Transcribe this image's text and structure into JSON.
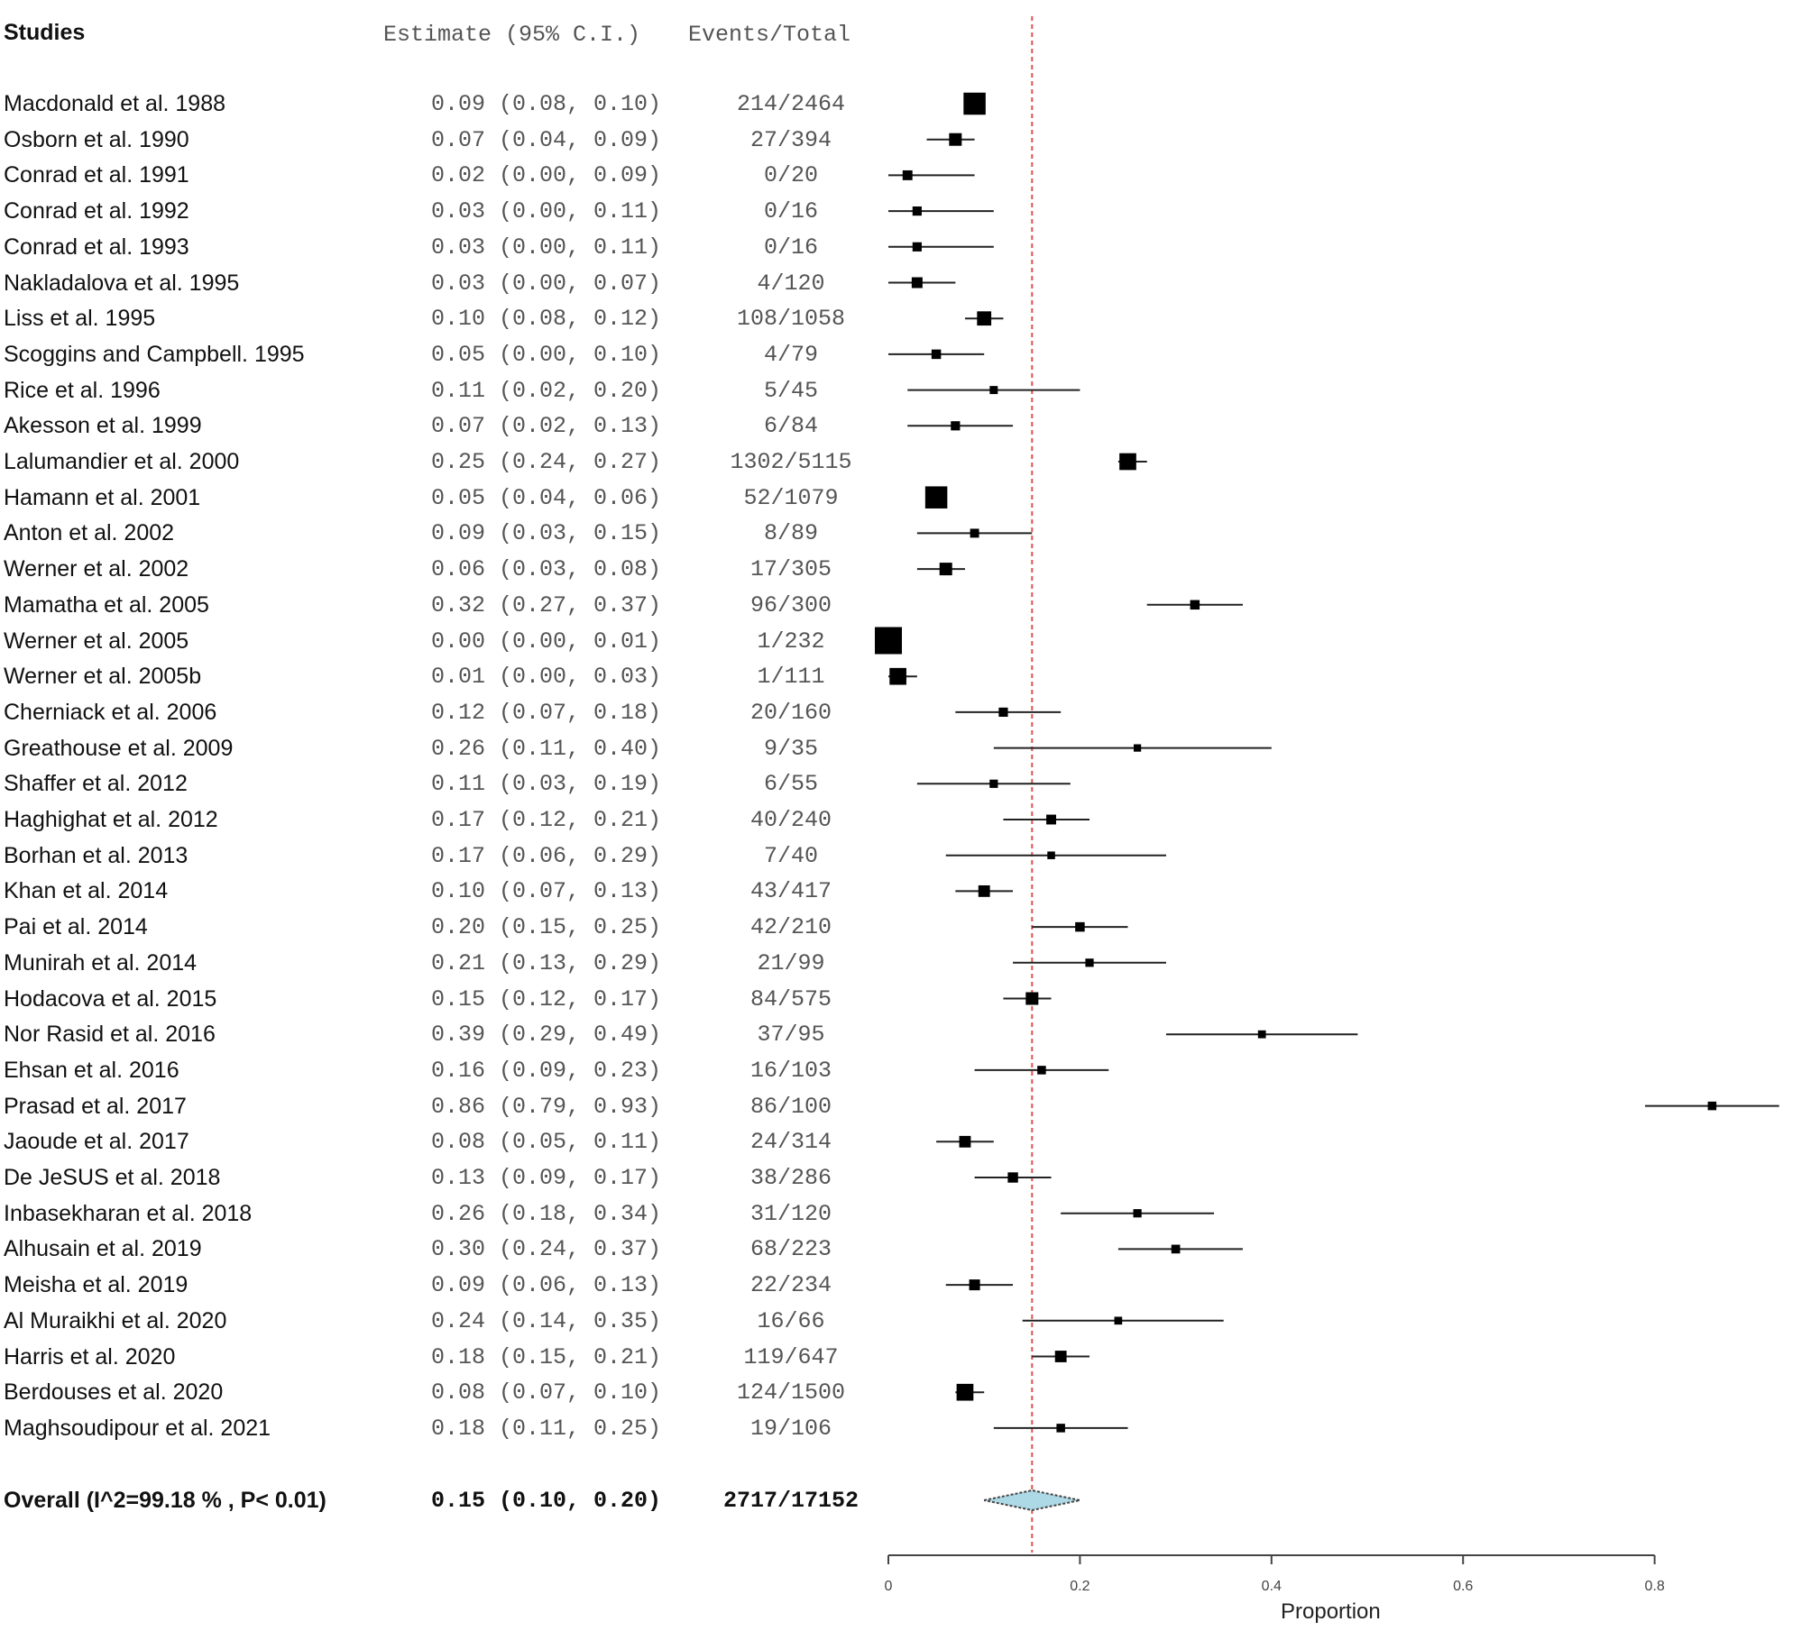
{
  "chart_data": {
    "type": "forest",
    "headers": {
      "studies": "Studies",
      "estimate": "Estimate (95% C.I.)",
      "events": "Events/Total"
    },
    "xlabel": "Proportion",
    "xlim": [
      0,
      0.8
    ],
    "xticks": [
      "0",
      "0.2",
      "0.4",
      "0.6",
      "0.8"
    ],
    "reference_line": 0.15,
    "reference_color": "#e05050",
    "diamond_color": "#add8e6",
    "studies": [
      {
        "name": "Macdonald et al. 1988",
        "est": 0.09,
        "lo": 0.08,
        "hi": 0.1,
        "ci": "0.09 (0.08, 0.10)",
        "events": "214/2464"
      },
      {
        "name": "Osborn et al. 1990",
        "est": 0.07,
        "lo": 0.04,
        "hi": 0.09,
        "ci": "0.07 (0.04, 0.09)",
        "events": "27/394"
      },
      {
        "name": "Conrad et al. 1991",
        "est": 0.02,
        "lo": 0.0,
        "hi": 0.09,
        "ci": "0.02 (0.00, 0.09)",
        "events": "0/20"
      },
      {
        "name": "Conrad et al. 1992",
        "est": 0.03,
        "lo": 0.0,
        "hi": 0.11,
        "ci": "0.03 (0.00, 0.11)",
        "events": "0/16"
      },
      {
        "name": "Conrad et al. 1993",
        "est": 0.03,
        "lo": 0.0,
        "hi": 0.11,
        "ci": "0.03 (0.00, 0.11)",
        "events": "0/16"
      },
      {
        "name": "Nakladalova et al. 1995",
        "est": 0.03,
        "lo": 0.0,
        "hi": 0.07,
        "ci": "0.03 (0.00, 0.07)",
        "events": "4/120"
      },
      {
        "name": "Liss et al. 1995",
        "est": 0.1,
        "lo": 0.08,
        "hi": 0.12,
        "ci": "0.10 (0.08, 0.12)",
        "events": "108/1058"
      },
      {
        "name": "Scoggins and Campbell. 1995",
        "est": 0.05,
        "lo": 0.0,
        "hi": 0.1,
        "ci": "0.05 (0.00, 0.10)",
        "events": "4/79"
      },
      {
        "name": "Rice et al. 1996",
        "est": 0.11,
        "lo": 0.02,
        "hi": 0.2,
        "ci": "0.11 (0.02, 0.20)",
        "events": "5/45"
      },
      {
        "name": "Akesson et al. 1999",
        "est": 0.07,
        "lo": 0.02,
        "hi": 0.13,
        "ci": "0.07 (0.02, 0.13)",
        "events": "6/84"
      },
      {
        "name": "Lalumandier et al. 2000",
        "est": 0.25,
        "lo": 0.24,
        "hi": 0.27,
        "ci": "0.25 (0.24, 0.27)",
        "events": "1302/5115"
      },
      {
        "name": "Hamann et al. 2001",
        "est": 0.05,
        "lo": 0.04,
        "hi": 0.06,
        "ci": "0.05 (0.04, 0.06)",
        "events": "52/1079"
      },
      {
        "name": "Anton et al. 2002",
        "est": 0.09,
        "lo": 0.03,
        "hi": 0.15,
        "ci": "0.09 (0.03, 0.15)",
        "events": "8/89"
      },
      {
        "name": "Werner et al. 2002",
        "est": 0.06,
        "lo": 0.03,
        "hi": 0.08,
        "ci": "0.06 (0.03, 0.08)",
        "events": "17/305"
      },
      {
        "name": "Mamatha et al. 2005",
        "est": 0.32,
        "lo": 0.27,
        "hi": 0.37,
        "ci": "0.32 (0.27, 0.37)",
        "events": "96/300"
      },
      {
        "name": "Werner et al. 2005",
        "est": 0.0,
        "lo": 0.0,
        "hi": 0.01,
        "ci": "0.00 (0.00, 0.01)",
        "events": "1/232"
      },
      {
        "name": "Werner et al. 2005b",
        "est": 0.01,
        "lo": 0.0,
        "hi": 0.03,
        "ci": "0.01 (0.00, 0.03)",
        "events": "1/111"
      },
      {
        "name": "Cherniack et al. 2006",
        "est": 0.12,
        "lo": 0.07,
        "hi": 0.18,
        "ci": "0.12 (0.07, 0.18)",
        "events": "20/160"
      },
      {
        "name": "Greathouse et al. 2009",
        "est": 0.26,
        "lo": 0.11,
        "hi": 0.4,
        "ci": "0.26 (0.11, 0.40)",
        "events": "9/35"
      },
      {
        "name": "Shaffer et al. 2012",
        "est": 0.11,
        "lo": 0.03,
        "hi": 0.19,
        "ci": "0.11 (0.03, 0.19)",
        "events": "6/55"
      },
      {
        "name": "Haghighat et al. 2012",
        "est": 0.17,
        "lo": 0.12,
        "hi": 0.21,
        "ci": "0.17 (0.12, 0.21)",
        "events": "40/240"
      },
      {
        "name": "Borhan et al. 2013",
        "est": 0.17,
        "lo": 0.06,
        "hi": 0.29,
        "ci": "0.17 (0.06, 0.29)",
        "events": "7/40"
      },
      {
        "name": "Khan et al. 2014",
        "est": 0.1,
        "lo": 0.07,
        "hi": 0.13,
        "ci": "0.10 (0.07, 0.13)",
        "events": "43/417"
      },
      {
        "name": "Pai et al. 2014",
        "est": 0.2,
        "lo": 0.15,
        "hi": 0.25,
        "ci": "0.20 (0.15, 0.25)",
        "events": "42/210"
      },
      {
        "name": "Munirah et al. 2014",
        "est": 0.21,
        "lo": 0.13,
        "hi": 0.29,
        "ci": "0.21 (0.13, 0.29)",
        "events": "21/99"
      },
      {
        "name": "Hodacova et al. 2015",
        "est": 0.15,
        "lo": 0.12,
        "hi": 0.17,
        "ci": "0.15 (0.12, 0.17)",
        "events": "84/575"
      },
      {
        "name": "Nor Rasid et al. 2016",
        "est": 0.39,
        "lo": 0.29,
        "hi": 0.49,
        "ci": "0.39 (0.29, 0.49)",
        "events": "37/95"
      },
      {
        "name": "Ehsan et al. 2016",
        "est": 0.16,
        "lo": 0.09,
        "hi": 0.23,
        "ci": "0.16 (0.09, 0.23)",
        "events": "16/103"
      },
      {
        "name": "Prasad et al. 2017",
        "est": 0.86,
        "lo": 0.79,
        "hi": 0.93,
        "ci": "0.86 (0.79, 0.93)",
        "events": "86/100"
      },
      {
        "name": "Jaoude et al. 2017",
        "est": 0.08,
        "lo": 0.05,
        "hi": 0.11,
        "ci": "0.08 (0.05, 0.11)",
        "events": "24/314"
      },
      {
        "name": "De JeSUS et al. 2018",
        "est": 0.13,
        "lo": 0.09,
        "hi": 0.17,
        "ci": "0.13 (0.09, 0.17)",
        "events": "38/286"
      },
      {
        "name": "Inbasekharan et al. 2018",
        "est": 0.26,
        "lo": 0.18,
        "hi": 0.34,
        "ci": "0.26 (0.18, 0.34)",
        "events": "31/120"
      },
      {
        "name": "Alhusain et al. 2019",
        "est": 0.3,
        "lo": 0.24,
        "hi": 0.37,
        "ci": "0.30 (0.24, 0.37)",
        "events": "68/223"
      },
      {
        "name": "Meisha et al. 2019",
        "est": 0.09,
        "lo": 0.06,
        "hi": 0.13,
        "ci": "0.09 (0.06, 0.13)",
        "events": "22/234"
      },
      {
        "name": "Al Muraikhi et al. 2020",
        "est": 0.24,
        "lo": 0.14,
        "hi": 0.35,
        "ci": "0.24 (0.14, 0.35)",
        "events": "16/66"
      },
      {
        "name": "Harris et al. 2020",
        "est": 0.18,
        "lo": 0.15,
        "hi": 0.21,
        "ci": "0.18 (0.15, 0.21)",
        "events": "119/647"
      },
      {
        "name": "Berdouses et al. 2020",
        "est": 0.08,
        "lo": 0.07,
        "hi": 0.1,
        "ci": "0.08 (0.07, 0.10)",
        "events": "124/1500"
      },
      {
        "name": "Maghsoudipour et al. 2021",
        "est": 0.18,
        "lo": 0.11,
        "hi": 0.25,
        "ci": "0.18 (0.11, 0.25)",
        "events": "19/106"
      }
    ],
    "overall": {
      "name": "Overall (I^2=99.18 % , P< 0.01)",
      "est": 0.15,
      "lo": 0.1,
      "hi": 0.2,
      "ci": "0.15 (0.10, 0.20)",
      "events": "2717/17152"
    }
  }
}
